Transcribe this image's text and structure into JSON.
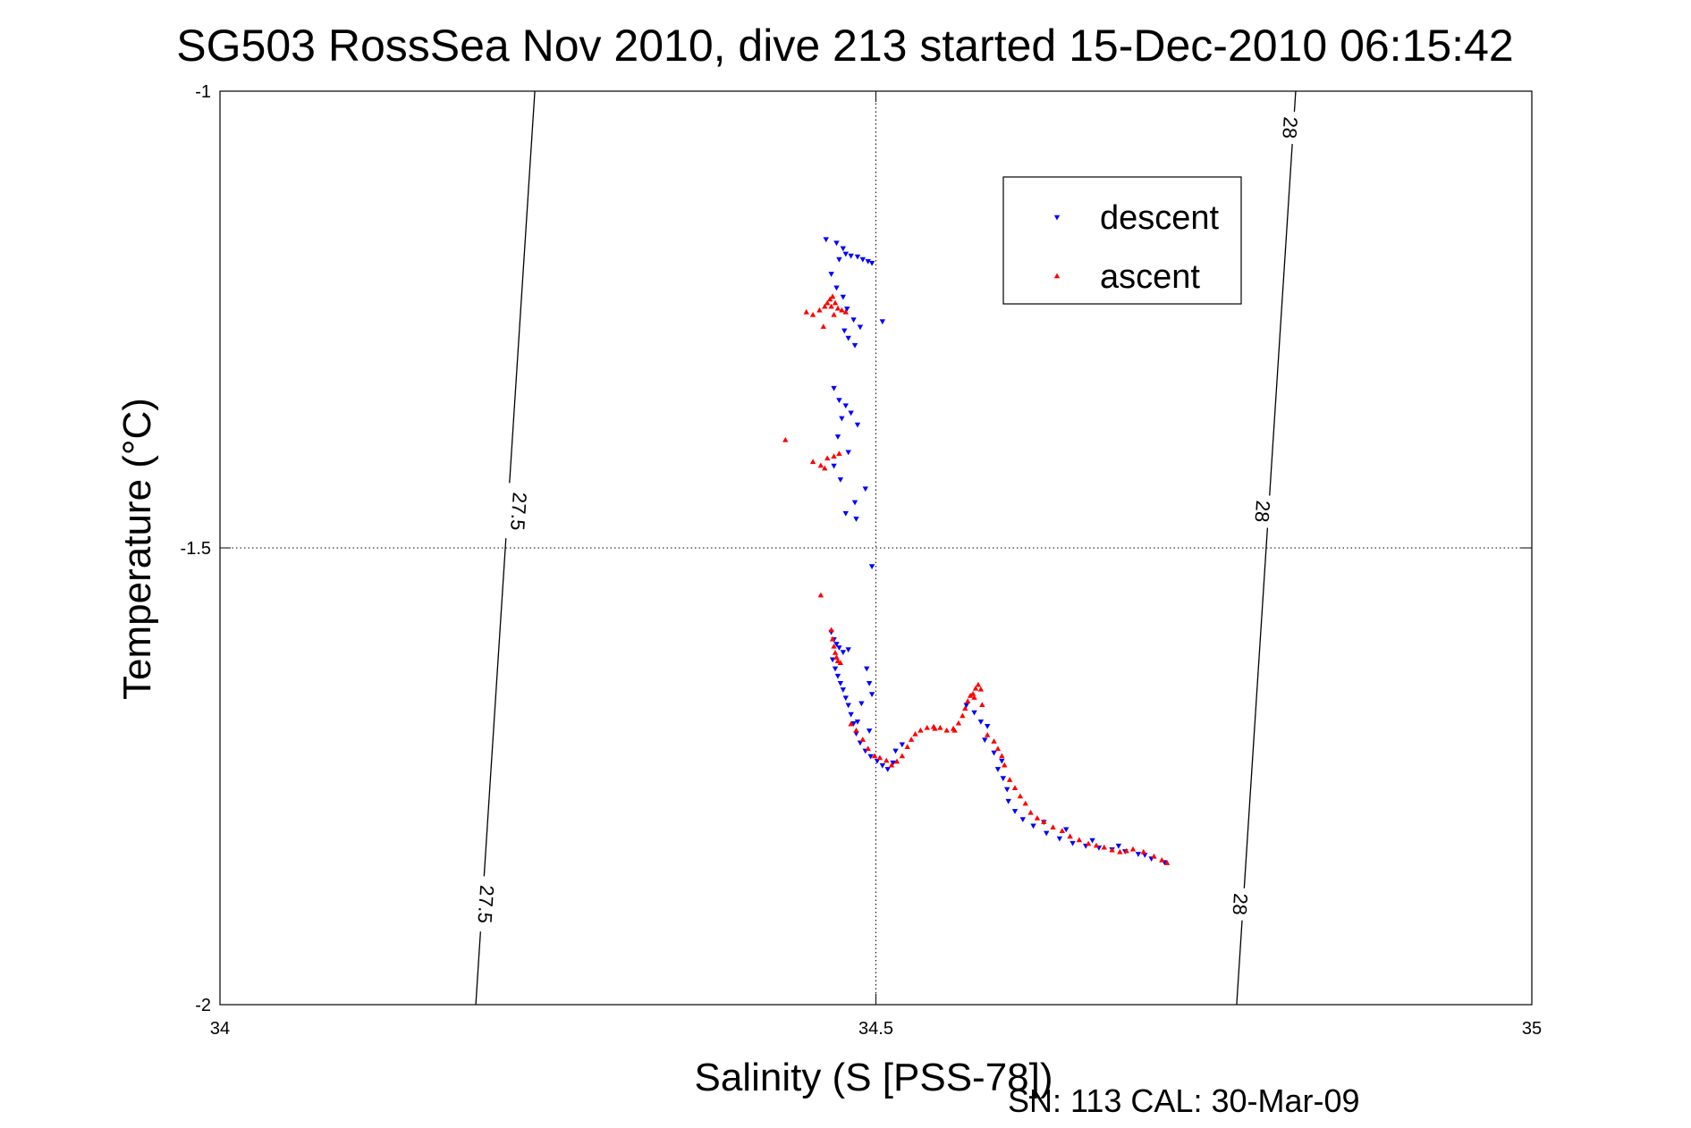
{
  "chart_data": {
    "type": "scatter",
    "title": "SG503 RossSea Nov 2010, dive 213 started 15-Dec-2010 06:15:42",
    "xlabel": "Salinity (S [PSS-78])",
    "ylabel": "Temperature (°C)",
    "xlim": [
      34,
      35
    ],
    "ylim": [
      -2,
      -1
    ],
    "x_ticks": [
      "34",
      "34.5",
      "35"
    ],
    "y_ticks": [
      "-1",
      "-1.5",
      "-2"
    ],
    "grid": true,
    "legend_position": "top-right",
    "footnote": "SN: 113  CAL: 30-Mar-09",
    "isopycnals": [
      {
        "label": "27.5",
        "points": [
          [
            34.195,
            -2.0
          ],
          [
            34.24,
            -1.0
          ]
        ],
        "label_positions": [
          [
            34.228,
            -1.46
          ],
          [
            34.203,
            -1.89
          ]
        ]
      },
      {
        "label": "28",
        "points": [
          [
            34.775,
            -2.0
          ],
          [
            34.82,
            -1.0
          ]
        ],
        "label_positions": [
          [
            34.816,
            -1.04
          ],
          [
            34.795,
            -1.46
          ],
          [
            34.778,
            -1.89
          ]
        ]
      }
    ],
    "series": [
      {
        "name": "descent",
        "color": "#0000ff",
        "marker": "triangle-down",
        "points": [
          [
            34.462,
            -1.162
          ],
          [
            34.47,
            -1.166
          ],
          [
            34.475,
            -1.172
          ],
          [
            34.477,
            -1.178
          ],
          [
            34.472,
            -1.184
          ],
          [
            34.481,
            -1.18
          ],
          [
            34.486,
            -1.181
          ],
          [
            34.49,
            -1.184
          ],
          [
            34.494,
            -1.186
          ],
          [
            34.497,
            -1.188
          ],
          [
            34.466,
            -1.2
          ],
          [
            34.47,
            -1.215
          ],
          [
            34.475,
            -1.225
          ],
          [
            34.478,
            -1.238
          ],
          [
            34.483,
            -1.25
          ],
          [
            34.476,
            -1.262
          ],
          [
            34.488,
            -1.258
          ],
          [
            34.479,
            -1.27
          ],
          [
            34.484,
            -1.278
          ],
          [
            34.505,
            -1.252
          ],
          [
            34.468,
            -1.325
          ],
          [
            34.472,
            -1.338
          ],
          [
            34.477,
            -1.344
          ],
          [
            34.474,
            -1.358
          ],
          [
            34.481,
            -1.352
          ],
          [
            34.486,
            -1.365
          ],
          [
            34.471,
            -1.378
          ],
          [
            34.479,
            -1.395
          ],
          [
            34.468,
            -1.41
          ],
          [
            34.473,
            -1.425
          ],
          [
            34.484,
            -1.45
          ],
          [
            34.477,
            -1.462
          ],
          [
            34.485,
            -1.468
          ],
          [
            34.492,
            -1.435
          ],
          [
            34.497,
            -1.52
          ],
          [
            34.466,
            -1.592
          ],
          [
            34.468,
            -1.6
          ],
          [
            34.47,
            -1.605
          ],
          [
            34.472,
            -1.609
          ],
          [
            34.475,
            -1.614
          ],
          [
            34.479,
            -1.611
          ],
          [
            34.467,
            -1.622
          ],
          [
            34.469,
            -1.632
          ],
          [
            34.471,
            -1.64
          ],
          [
            34.473,
            -1.648
          ],
          [
            34.475,
            -1.655
          ],
          [
            34.477,
            -1.664
          ],
          [
            34.479,
            -1.672
          ],
          [
            34.481,
            -1.682
          ],
          [
            34.483,
            -1.692
          ],
          [
            34.485,
            -1.703
          ],
          [
            34.488,
            -1.713
          ],
          [
            34.492,
            -1.722
          ],
          [
            34.496,
            -1.728
          ],
          [
            34.501,
            -1.733
          ],
          [
            34.505,
            -1.738
          ],
          [
            34.509,
            -1.742
          ],
          [
            34.513,
            -1.735
          ],
          [
            34.493,
            -1.632
          ],
          [
            34.495,
            -1.648
          ],
          [
            34.497,
            -1.66
          ],
          [
            34.489,
            -1.67
          ],
          [
            34.486,
            -1.69
          ],
          [
            34.495,
            -1.7
          ],
          [
            34.515,
            -1.722
          ],
          [
            34.52,
            -1.715
          ],
          [
            34.569,
            -1.672
          ],
          [
            34.575,
            -1.68
          ],
          [
            34.58,
            -1.69
          ],
          [
            34.585,
            -1.695
          ],
          [
            34.583,
            -1.71
          ],
          [
            34.59,
            -1.724
          ],
          [
            34.593,
            -1.742
          ],
          [
            34.597,
            -1.752
          ],
          [
            34.6,
            -1.764
          ],
          [
            34.596,
            -1.733
          ],
          [
            34.601,
            -1.777
          ],
          [
            34.606,
            -1.788
          ],
          [
            34.612,
            -1.797
          ],
          [
            34.62,
            -1.804
          ],
          [
            34.63,
            -1.812
          ],
          [
            34.64,
            -1.818
          ],
          [
            34.65,
            -1.823
          ],
          [
            34.66,
            -1.826
          ],
          [
            34.67,
            -1.828
          ],
          [
            34.68,
            -1.83
          ],
          [
            34.69,
            -1.832
          ],
          [
            34.7,
            -1.835
          ],
          [
            34.71,
            -1.84
          ],
          [
            34.72,
            -1.844
          ],
          [
            34.628,
            -1.8
          ],
          [
            34.645,
            -1.808
          ],
          [
            34.665,
            -1.82
          ],
          [
            34.685,
            -1.826
          ],
          [
            34.705,
            -1.836
          ]
        ]
      },
      {
        "name": "ascent",
        "color": "#ff0000",
        "marker": "triangle-up",
        "points": [
          [
            34.447,
            -1.242
          ],
          [
            34.452,
            -1.245
          ],
          [
            34.457,
            -1.24
          ],
          [
            34.461,
            -1.236
          ],
          [
            34.463,
            -1.232
          ],
          [
            34.465,
            -1.228
          ],
          [
            34.467,
            -1.225
          ],
          [
            34.469,
            -1.232
          ],
          [
            34.471,
            -1.238
          ],
          [
            34.474,
            -1.24
          ],
          [
            34.477,
            -1.242
          ],
          [
            34.466,
            -1.236
          ],
          [
            34.468,
            -1.245
          ],
          [
            34.46,
            -1.258
          ],
          [
            34.431,
            -1.382
          ],
          [
            34.452,
            -1.406
          ],
          [
            34.458,
            -1.41
          ],
          [
            34.463,
            -1.402
          ],
          [
            34.468,
            -1.4
          ],
          [
            34.472,
            -1.397
          ],
          [
            34.461,
            -1.413
          ],
          [
            34.458,
            -1.552
          ],
          [
            34.466,
            -1.59
          ],
          [
            34.467,
            -1.6
          ],
          [
            34.468,
            -1.608
          ],
          [
            34.469,
            -1.615
          ],
          [
            34.47,
            -1.62
          ],
          [
            34.471,
            -1.624
          ],
          [
            34.473,
            -1.626
          ],
          [
            34.481,
            -1.693
          ],
          [
            34.485,
            -1.7
          ],
          [
            34.49,
            -1.71
          ],
          [
            34.494,
            -1.72
          ],
          [
            34.499,
            -1.728
          ],
          [
            34.503,
            -1.73
          ],
          [
            34.508,
            -1.733
          ],
          [
            34.512,
            -1.738
          ],
          [
            34.516,
            -1.734
          ],
          [
            34.52,
            -1.728
          ],
          [
            34.524,
            -1.718
          ],
          [
            34.527,
            -1.71
          ],
          [
            34.53,
            -1.704
          ],
          [
            34.534,
            -1.7
          ],
          [
            34.539,
            -1.697
          ],
          [
            34.544,
            -1.696
          ],
          [
            34.549,
            -1.697
          ],
          [
            34.554,
            -1.7
          ],
          [
            34.559,
            -1.698
          ],
          [
            34.563,
            -1.692
          ],
          [
            34.566,
            -1.684
          ],
          [
            34.568,
            -1.676
          ],
          [
            34.57,
            -1.668
          ],
          [
            34.572,
            -1.662
          ],
          [
            34.574,
            -1.66
          ],
          [
            34.576,
            -1.654
          ],
          [
            34.578,
            -1.65
          ],
          [
            34.58,
            -1.655
          ],
          [
            34.575,
            -1.664
          ],
          [
            34.581,
            -1.672
          ],
          [
            34.585,
            -1.705
          ],
          [
            34.59,
            -1.712
          ],
          [
            34.593,
            -1.72
          ],
          [
            34.596,
            -1.728
          ],
          [
            34.598,
            -1.738
          ],
          [
            34.602,
            -1.754
          ],
          [
            34.606,
            -1.763
          ],
          [
            34.61,
            -1.772
          ],
          [
            34.614,
            -1.78
          ],
          [
            34.618,
            -1.79
          ],
          [
            34.623,
            -1.796
          ],
          [
            34.628,
            -1.8
          ],
          [
            34.635,
            -1.806
          ],
          [
            34.642,
            -1.81
          ],
          [
            34.648,
            -1.816
          ],
          [
            34.655,
            -1.82
          ],
          [
            34.662,
            -1.824
          ],
          [
            34.668,
            -1.826
          ],
          [
            34.674,
            -1.828
          ],
          [
            34.68,
            -1.831
          ],
          [
            34.686,
            -1.833
          ],
          [
            34.691,
            -1.832
          ],
          [
            34.696,
            -1.83
          ],
          [
            34.704,
            -1.833
          ],
          [
            34.712,
            -1.838
          ],
          [
            34.718,
            -1.842
          ],
          [
            34.722,
            -1.845
          ],
          [
            34.56,
            -1.7
          ],
          [
            34.545,
            -1.698
          ]
        ]
      }
    ]
  }
}
